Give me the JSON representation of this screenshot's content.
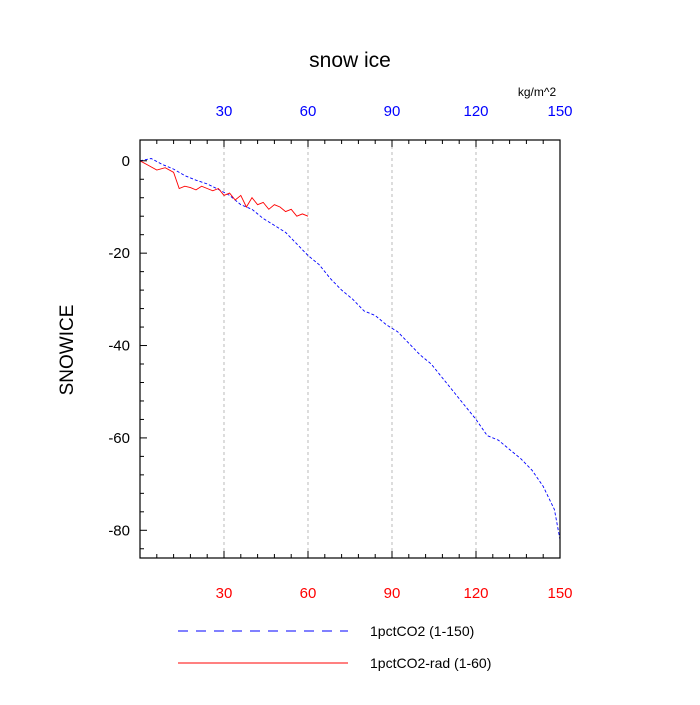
{
  "chart_data": {
    "type": "line",
    "title": "snow ice",
    "ylabel": "SNOWICE",
    "units": "kg/m^2",
    "xlim": [
      0,
      150
    ],
    "ylim": [
      -86,
      4.5
    ],
    "top_ticks": [
      "30",
      "60",
      "90",
      "120",
      "150"
    ],
    "bottom_ticks": [
      "30",
      "60",
      "90",
      "120",
      "150"
    ],
    "y_ticks": [
      "0",
      "-20",
      "-40",
      "-60",
      "-80"
    ],
    "grid": "vertical dashed at top/bottom tick positions",
    "colors": {
      "top_axis": "#0000ff",
      "bottom_axis": "#ff0000"
    },
    "series": [
      {
        "name": "1pctCO2 (1-150)",
        "color": "#0000ff",
        "style": "dashed",
        "x": [
          0,
          4,
          8,
          12,
          16,
          20,
          24,
          28,
          32,
          36,
          40,
          44,
          48,
          52,
          56,
          60,
          64,
          68,
          72,
          76,
          80,
          84,
          88,
          92,
          96,
          100,
          104,
          108,
          112,
          116,
          120,
          124,
          128,
          132,
          136,
          140,
          144,
          148,
          150
        ],
        "y": [
          0,
          0.5,
          -0.8,
          -1.8,
          -3.2,
          -4.2,
          -5.0,
          -6.2,
          -7.5,
          -9.5,
          -10.5,
          -12.5,
          -14.0,
          -15.5,
          -18.0,
          -20.5,
          -22.5,
          -25.5,
          -28.0,
          -30.0,
          -32.5,
          -33.5,
          -35.5,
          -37.0,
          -39.5,
          -42.0,
          -44.0,
          -47.0,
          -50.0,
          -53.0,
          -56.0,
          -59.5,
          -60.5,
          -62.5,
          -64.5,
          -67.0,
          -70.5,
          -75.5,
          -82.0
        ]
      },
      {
        "name": "1pctCO2-rad (1-60)",
        "color": "#ff0000",
        "style": "solid",
        "x": [
          0,
          3,
          6,
          9,
          12,
          14,
          16,
          18,
          20,
          22,
          24,
          26,
          28,
          30,
          32,
          34,
          36,
          38,
          40,
          42,
          44,
          46,
          48,
          50,
          52,
          54,
          56,
          58,
          60
        ],
        "y": [
          0,
          -1.0,
          -2.0,
          -1.5,
          -2.5,
          -6.0,
          -5.5,
          -5.8,
          -6.3,
          -5.5,
          -6.0,
          -6.5,
          -6.0,
          -7.5,
          -7.0,
          -8.5,
          -7.5,
          -10.0,
          -8.0,
          -9.5,
          -9.0,
          -10.5,
          -9.5,
          -10.0,
          -11.0,
          -10.5,
          -12.0,
          -11.5,
          -12.0
        ]
      }
    ],
    "legend": "bottom"
  }
}
